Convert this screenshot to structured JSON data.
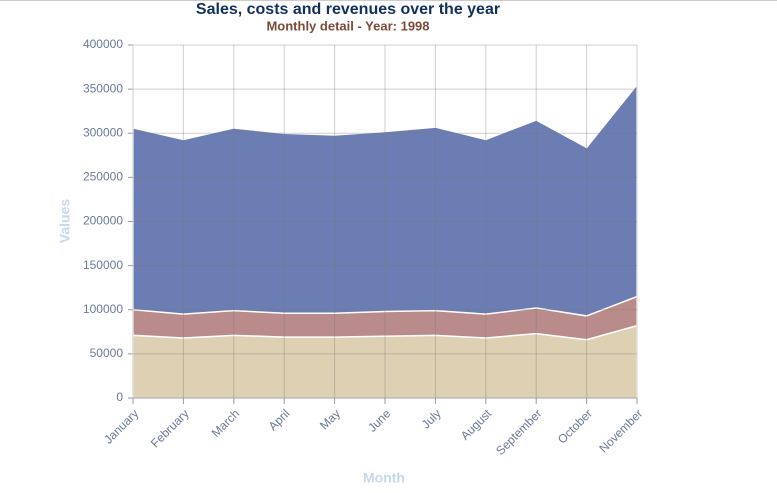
{
  "chart_data": {
    "type": "area",
    "title": "Sales, costs and revenues over the year",
    "subtitle": "Monthly detail - Year: 1998",
    "x_label": "Month",
    "y_label": "Values",
    "categories": [
      "January",
      "February",
      "March",
      "April",
      "May",
      "June",
      "July",
      "August",
      "September",
      "October",
      "November"
    ],
    "series": [
      {
        "color": "#6b7db3",
        "values": [
          306000,
          293000,
          306000,
          300000,
          298000,
          302000,
          307000,
          293000,
          315000,
          284000,
          355000
        ]
      },
      {
        "color": "#b98b8b",
        "values": [
          100000,
          95000,
          99000,
          96000,
          96000,
          98000,
          99000,
          95000,
          102000,
          93000,
          115000
        ]
      },
      {
        "color": "#ded0b3",
        "values": [
          71000,
          68000,
          71000,
          69000,
          69000,
          70000,
          71000,
          68000,
          73000,
          66000,
          82000
        ]
      }
    ],
    "ylim": [
      0,
      400000
    ],
    "yticks": [
      0,
      50000,
      100000,
      150000,
      200000,
      250000,
      300000,
      350000,
      400000
    ],
    "grid": true
  }
}
